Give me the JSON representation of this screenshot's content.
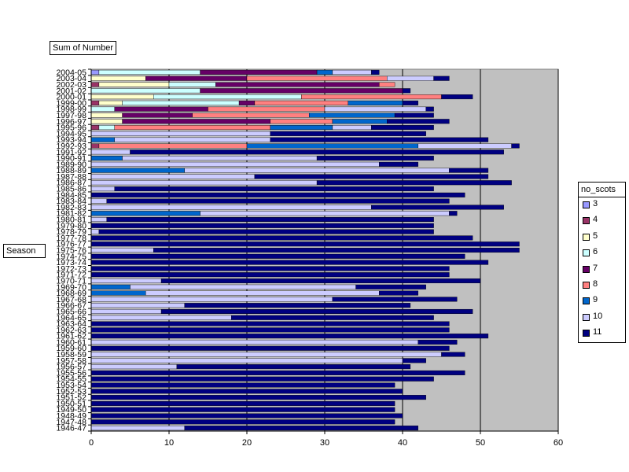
{
  "chart_data": {
    "type": "bar",
    "orientation": "horizontal",
    "stacked": true,
    "field_label": "Sum of Number",
    "row_field": "Season",
    "legend_title": "no_scots",
    "legend_position": "right",
    "xlim": [
      0,
      60
    ],
    "x_ticks": [
      0,
      10,
      20,
      30,
      40,
      50,
      60
    ],
    "gridlines": "vertical",
    "plot_background": "#c0c0c0",
    "categories": [
      "2004-05",
      "2003-04",
      "2002-03",
      "2001-02",
      "2000-01",
      "1999-00",
      "1998-99",
      "1997-98",
      "1996-97",
      "1995-96",
      "1994-95",
      "1993-94",
      "1992-93",
      "1991-92",
      "1990-91",
      "1989-90",
      "1988-89",
      "1987-88",
      "1986-87",
      "1985-86",
      "1984-85",
      "1983-84",
      "1982-83",
      "1981-82",
      "1980-81",
      "1979-80",
      "1978-79",
      "1977-78",
      "1976-77",
      "1975-76",
      "1974-75",
      "1973-74",
      "1972-73",
      "1971-72",
      "1970-71",
      "1969-70",
      "1968-69",
      "1967-68",
      "1966-67",
      "1965-66",
      "1964-65",
      "1963-64",
      "1962-63",
      "1961-62",
      "1960-61",
      "1959-60",
      "1958-59",
      "1957-58",
      "1956-57",
      "1955-56",
      "1954-55",
      "1953-54",
      "1952-53",
      "1951-52",
      "1950-51",
      "1949-50",
      "1948-49",
      "1947-48",
      "1946-47"
    ],
    "series": [
      {
        "name": "3",
        "color": "#9999ff",
        "values": [
          1,
          0,
          0,
          0,
          0,
          0,
          0,
          0,
          0,
          0,
          0,
          0,
          0,
          0,
          0,
          0,
          0,
          0,
          0,
          0,
          0,
          0,
          0,
          0,
          0,
          0,
          0,
          0,
          0,
          0,
          0,
          0,
          0,
          0,
          0,
          0,
          0,
          0,
          0,
          0,
          0,
          0,
          0,
          0,
          0,
          0,
          0,
          0,
          0,
          0,
          0,
          0,
          0,
          0,
          0,
          0,
          0,
          0,
          0
        ]
      },
      {
        "name": "4",
        "color": "#993366",
        "values": [
          0,
          0,
          1,
          0,
          0,
          1,
          0,
          0,
          0,
          1,
          0,
          0,
          1,
          0,
          0,
          0,
          0,
          0,
          0,
          0,
          0,
          0,
          0,
          0,
          0,
          0,
          0,
          0,
          0,
          0,
          0,
          0,
          0,
          0,
          0,
          0,
          0,
          0,
          0,
          0,
          0,
          0,
          0,
          0,
          0,
          0,
          0,
          0,
          0,
          0,
          0,
          0,
          0,
          0,
          0,
          0,
          0,
          0,
          0
        ]
      },
      {
        "name": "5",
        "color": "#ffffcc",
        "values": [
          0,
          7,
          9,
          0,
          8,
          3,
          0,
          4,
          4,
          0,
          0,
          0,
          0,
          0,
          0,
          0,
          0,
          0,
          0,
          0,
          0,
          0,
          0,
          0,
          0,
          0,
          0,
          0,
          0,
          0,
          0,
          0,
          0,
          0,
          0,
          0,
          0,
          0,
          0,
          0,
          0,
          0,
          0,
          0,
          0,
          0,
          0,
          0,
          0,
          0,
          0,
          0,
          0,
          0,
          0,
          0,
          0,
          0,
          0
        ]
      },
      {
        "name": "6",
        "color": "#ccffff",
        "values": [
          13,
          0,
          6,
          14,
          19,
          15,
          3,
          0,
          0,
          2,
          0,
          0,
          0,
          0,
          0,
          0,
          0,
          0,
          0,
          0,
          0,
          0,
          0,
          0,
          0,
          0,
          0,
          0,
          0,
          0,
          0,
          0,
          0,
          0,
          0,
          0,
          0,
          0,
          0,
          0,
          0,
          0,
          0,
          0,
          0,
          0,
          0,
          0,
          0,
          0,
          0,
          0,
          0,
          0,
          0,
          0,
          0,
          0,
          0
        ]
      },
      {
        "name": "7",
        "color": "#660066",
        "values": [
          15,
          13,
          21,
          26,
          0,
          2,
          12,
          9,
          19,
          0,
          0,
          0,
          0,
          0,
          0,
          0,
          0,
          0,
          0,
          0,
          0,
          0,
          0,
          0,
          0,
          0,
          0,
          0,
          0,
          0,
          0,
          0,
          0,
          0,
          0,
          0,
          0,
          0,
          0,
          0,
          0,
          0,
          0,
          0,
          0,
          0,
          0,
          0,
          0,
          0,
          0,
          0,
          0,
          0,
          0,
          0,
          0,
          0,
          0
        ]
      },
      {
        "name": "8",
        "color": "#ff8080",
        "values": [
          0,
          18,
          2,
          0,
          18,
          12,
          15,
          15,
          8,
          20,
          0,
          0,
          19,
          0,
          0,
          0,
          0,
          0,
          0,
          0,
          0,
          0,
          0,
          0,
          0,
          0,
          0,
          0,
          0,
          0,
          0,
          0,
          0,
          0,
          0,
          0,
          0,
          0,
          0,
          0,
          0,
          0,
          0,
          0,
          0,
          0,
          0,
          0,
          0,
          0,
          0,
          0,
          0,
          0,
          0,
          0,
          0,
          0,
          0
        ]
      },
      {
        "name": "9",
        "color": "#0066cc",
        "values": [
          2,
          0,
          0,
          0,
          0,
          7,
          0,
          11,
          7,
          8,
          0,
          3,
          22,
          0,
          4,
          0,
          12,
          0,
          0,
          0,
          0,
          0,
          0,
          14,
          0,
          0,
          0,
          0,
          0,
          0,
          0,
          0,
          0,
          0,
          0,
          5,
          7,
          0,
          0,
          0,
          0,
          0,
          0,
          0,
          0,
          0,
          0,
          0,
          0,
          0,
          0,
          0,
          0,
          0,
          0,
          0,
          0,
          0,
          0
        ]
      },
      {
        "name": "10",
        "color": "#ccccff",
        "values": [
          5,
          6,
          0,
          0,
          0,
          0,
          13,
          0,
          0,
          5,
          23,
          20,
          12,
          5,
          25,
          37,
          34,
          21,
          29,
          3,
          0,
          2,
          36,
          32,
          2,
          0,
          1,
          0,
          0,
          8,
          0,
          0,
          0,
          0,
          9,
          29,
          30,
          31,
          12,
          9,
          18,
          0,
          0,
          0,
          42,
          0,
          45,
          40,
          11,
          0,
          0,
          0,
          0,
          0,
          0,
          0,
          0,
          0,
          12
        ]
      },
      {
        "name": "11",
        "color": "#000080",
        "values": [
          1,
          2,
          0,
          1,
          4,
          2,
          1,
          5,
          8,
          8,
          20,
          28,
          1,
          48,
          15,
          5,
          5,
          30,
          25,
          41,
          48,
          44,
          17,
          1,
          42,
          44,
          43,
          49,
          55,
          47,
          48,
          51,
          46,
          46,
          41,
          9,
          5,
          16,
          29,
          40,
          26,
          46,
          46,
          51,
          5,
          46,
          3,
          3,
          30,
          48,
          44,
          39,
          40,
          43,
          39,
          39,
          40,
          39,
          30
        ]
      }
    ]
  }
}
